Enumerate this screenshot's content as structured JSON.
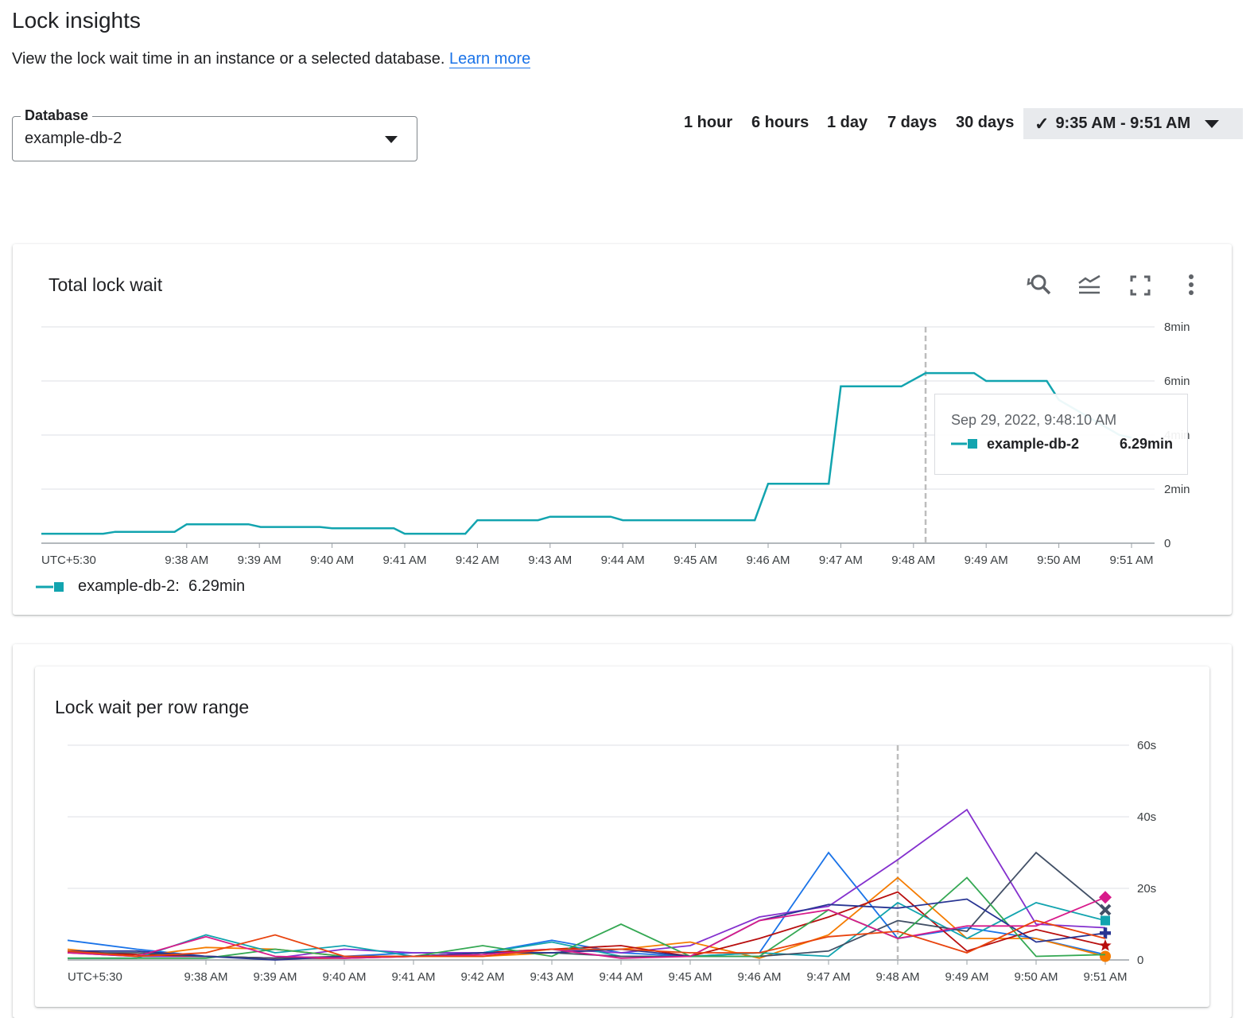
{
  "header": {
    "title": "Lock insights",
    "subtitle": "View the lock wait time in an instance or a selected database.",
    "learn_more": "Learn more"
  },
  "database_select": {
    "label": "Database",
    "value": "example-db-2"
  },
  "time_range": {
    "options": [
      "1 hour",
      "6 hours",
      "1 day",
      "7 days",
      "30 days"
    ],
    "selected": "9:35 AM - 9:51 AM"
  },
  "colors": {
    "accent": "#1a73e8",
    "series_teal": "#12a4af"
  },
  "chart_data": [
    {
      "type": "line",
      "title": "Total lock wait",
      "icons": [
        "zoom-reset-icon",
        "legend-toggle-icon",
        "fullscreen-icon",
        "more-vert-icon"
      ],
      "x_tick_labels": [
        "UTC+5:30",
        "9:38 AM",
        "9:39 AM",
        "9:40 AM",
        "9:41 AM",
        "9:42 AM",
        "9:43 AM",
        "9:44 AM",
        "9:45 AM",
        "9:46 AM",
        "9:47 AM",
        "9:48 AM",
        "9:49 AM",
        "9:50 AM",
        "9:51 AM"
      ],
      "y_tick_labels": [
        "0",
        "2min",
        "4min",
        "6min",
        "8min"
      ],
      "ylim": [
        0,
        8
      ],
      "y_unit": "min",
      "grid": true,
      "series": [
        {
          "name": "example-db-2",
          "color": "#12a4af",
          "points": [
            [
              "9:36:00",
              0.35
            ],
            [
              "9:36:51",
              0.35
            ],
            [
              "9:37:01",
              0.42
            ],
            [
              "9:37:50",
              0.42
            ],
            [
              "9:38:00",
              0.7
            ],
            [
              "9:38:51",
              0.7
            ],
            [
              "9:39:01",
              0.6
            ],
            [
              "9:39:50",
              0.6
            ],
            [
              "9:40:00",
              0.55
            ],
            [
              "9:40:51",
              0.55
            ],
            [
              "9:41:00",
              0.35
            ],
            [
              "9:41:50",
              0.35
            ],
            [
              "9:42:00",
              0.85
            ],
            [
              "9:42:50",
              0.85
            ],
            [
              "9:43:00",
              0.98
            ],
            [
              "9:43:50",
              0.98
            ],
            [
              "9:44:00",
              0.85
            ],
            [
              "9:45:49",
              0.85
            ],
            [
              "9:46:00",
              2.2
            ],
            [
              "9:46:50",
              2.2
            ],
            [
              "9:47:00",
              5.8
            ],
            [
              "9:47:50",
              5.8
            ],
            [
              "9:48:10",
              6.29
            ],
            [
              "9:48:50",
              6.29
            ],
            [
              "9:49:00",
              6.0
            ],
            [
              "9:49:50",
              6.0
            ],
            [
              "9:50:00",
              5.3
            ],
            [
              "9:50:50",
              4.0
            ],
            [
              "9:51:00",
              3.9
            ]
          ]
        }
      ],
      "cursor_time": "9:48:10",
      "tooltip": {
        "time": "Sep 29, 2022, 9:48:10 AM",
        "series": "example-db-2",
        "value": "6.29min"
      },
      "legend": {
        "text": "example-db-2:  6.29min",
        "placement": "bottom-left"
      }
    },
    {
      "type": "line",
      "title": "Lock wait per row range",
      "x_tick_labels": [
        "UTC+5:30",
        "9:38 AM",
        "9:39 AM",
        "9:40 AM",
        "9:41 AM",
        "9:42 AM",
        "9:43 AM",
        "9:44 AM",
        "9:45 AM",
        "9:46 AM",
        "9:47 AM",
        "9:48 AM",
        "9:49 AM",
        "9:50 AM",
        "9:51 AM"
      ],
      "y_tick_labels": [
        "0",
        "20s",
        "40s",
        "60s"
      ],
      "ylim": [
        0,
        60
      ],
      "y_unit": "s",
      "grid": true,
      "x": [
        "9:36",
        "9:37",
        "9:38",
        "9:39",
        "9:40",
        "9:41",
        "9:42",
        "9:43",
        "9:44",
        "9:45",
        "9:46",
        "9:47",
        "9:48",
        "9:49",
        "9:50",
        "9:51"
      ],
      "cursor_time": "9:48",
      "series": [
        {
          "color": "#1a73e8",
          "marker": null,
          "values": [
            5.5,
            3,
            1,
            0.5,
            1,
            2,
            2,
            5.5,
            2,
            1,
            2,
            30,
            6,
            9,
            6,
            1.5
          ]
        },
        {
          "color": "#8430ce",
          "marker": null,
          "values": [
            2,
            1,
            1,
            0.5,
            3,
            2,
            2,
            3,
            2,
            4,
            12,
            15,
            28,
            42,
            10,
            9
          ]
        },
        {
          "color": "#f57c00",
          "marker": "circle",
          "values": [
            3,
            1,
            3.5,
            3,
            1,
            1,
            1,
            2,
            3,
            5,
            0.5,
            7,
            23,
            6,
            6,
            1
          ]
        },
        {
          "color": "#b80e0e",
          "marker": "star",
          "values": [
            2.5,
            1.5,
            1,
            0.5,
            0.5,
            1,
            2,
            3,
            4,
            1,
            6,
            12,
            19,
            2.5,
            8.5,
            4
          ]
        },
        {
          "color": "#12a4af",
          "marker": "square",
          "values": [
            0.5,
            0.5,
            7,
            2,
            4,
            1,
            2,
            5,
            1,
            1,
            2,
            1,
            16,
            6,
            16,
            11
          ]
        },
        {
          "color": "#425066",
          "marker": "x",
          "values": [
            2,
            2,
            1,
            0.5,
            1,
            1,
            2,
            2,
            1,
            1,
            1,
            2.5,
            11,
            8,
            30,
            14
          ]
        },
        {
          "color": "#34a853",
          "marker": null,
          "values": [
            0.5,
            0.5,
            0.5,
            3,
            1,
            1,
            4,
            1,
            10,
            1,
            1,
            14,
            6,
            23,
            1,
            1.5
          ]
        },
        {
          "color": "#283593",
          "marker": "plus",
          "values": [
            2.5,
            2.5,
            1,
            0,
            1,
            1,
            2,
            2,
            3,
            1,
            11,
            15.5,
            14.5,
            17,
            5,
            7.5
          ]
        },
        {
          "color": "#d81b8b",
          "marker": "diamond",
          "values": [
            2,
            1,
            6.5,
            1,
            0.5,
            1,
            1.5,
            3,
            0.5,
            1,
            11,
            14,
            6,
            9.5,
            9.5,
            17.5
          ]
        },
        {
          "color": "#e8430e",
          "marker": null,
          "values": [
            2.5,
            1,
            2,
            7,
            1,
            1,
            1,
            3,
            3,
            2,
            2,
            6.5,
            8,
            2,
            11,
            6
          ]
        }
      ]
    }
  ]
}
